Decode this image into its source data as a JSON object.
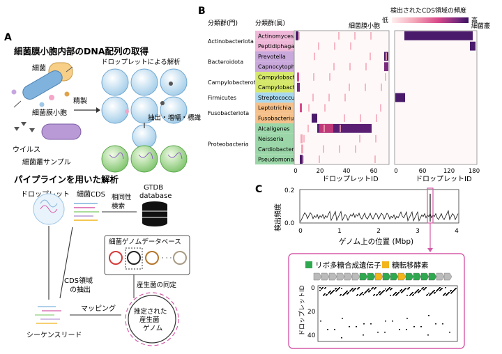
{
  "panelA": {
    "label": "A",
    "title1": "細菌膜小胞内部のDNA配列の取得",
    "bacteria": "細菌",
    "purify": "精製",
    "mv": "細菌膜小胞",
    "virus": "ウイルス",
    "sample": "細菌叢サンプル",
    "droplet_analysis": "ドロップレットによる解析",
    "extract": "抽出・増幅・標識",
    "title2": "パイプラインを用いた解析",
    "droplet": "ドロップレット",
    "cds": "細菌CDS",
    "homology": [
      "相同性",
      "検索"
    ],
    "gtdb": [
      "GTDB",
      "database"
    ],
    "genome_db": "細菌ゲノムデータベース",
    "identify": "産生菌の同定",
    "extract_cds": [
      "CDS領域",
      "の抽出"
    ],
    "mapping": "マッピング",
    "reads": "シーケンスリード",
    "estimated": [
      "推定された",
      "産生菌",
      "ゲノム"
    ]
  },
  "panelB": {
    "label": "B",
    "phylum_header": "分類群(門)",
    "genus_header": "分類群(属)",
    "legend_title": "検出されたCDS領域の頻度",
    "legend_low": "低",
    "legend_high": "高",
    "left_title": "細菌膜小胞",
    "right_title": "細菌叢",
    "xlabel": "ドロップレットID",
    "left_ticks": [
      "0",
      "20",
      "40",
      "60"
    ],
    "right_ticks": [
      "0",
      "60",
      "120",
      "180"
    ],
    "phyla": [
      "Actinobacteriota",
      "Bacteroidota",
      "Campylobacterota",
      "Firmicutes",
      "Fusobacteriota",
      "Proteobacteria"
    ],
    "genera": [
      {
        "name": "Actinomyces",
        "color": "#f0b8d8"
      },
      {
        "name": "Peptidiphaga",
        "color": "#f0b8d8"
      },
      {
        "name": "Prevotella",
        "color": "#c9a8dc"
      },
      {
        "name": "Capnocytophaga",
        "color": "#c9a8dc"
      },
      {
        "name": "Campylobacter_A",
        "color": "#d6e86a"
      },
      {
        "name": "Campylobacter_B",
        "color": "#d6e86a"
      },
      {
        "name": "Streptococcus",
        "color": "#a8d8ee"
      },
      {
        "name": "Leptotrichia",
        "color": "#f6c08a"
      },
      {
        "name": "Fusobacterium",
        "color": "#f6c08a"
      },
      {
        "name": "Alcaligenes",
        "color": "#9bd6a8"
      },
      {
        "name": "Neisseria",
        "color": "#9bd6a8"
      },
      {
        "name": "Cardiobacterium",
        "color": "#9bd6a8"
      },
      {
        "name": "Pseudomonas_E",
        "color": "#9bd6a8"
      }
    ]
  },
  "panelC": {
    "label": "C",
    "ylabel": "検出頻度",
    "yticks": [
      "0.2",
      "0.0"
    ],
    "xticks": [
      "0",
      "1",
      "2",
      "3",
      "4"
    ],
    "xlabel": "ゲノム上の位置 (Mbp)",
    "legend1": "リボ多糖合成遺伝子",
    "legend2": "糖転移酵素",
    "legend1_color": "#2fa84f",
    "legend2_color": "#f2b51c",
    "inset_ylabel": "ドロップレットID",
    "inset_yticks": [
      "0",
      "20",
      "40"
    ]
  },
  "colors": {
    "accent": "#d65aa8",
    "heat_dark": "#4a1a6b"
  }
}
